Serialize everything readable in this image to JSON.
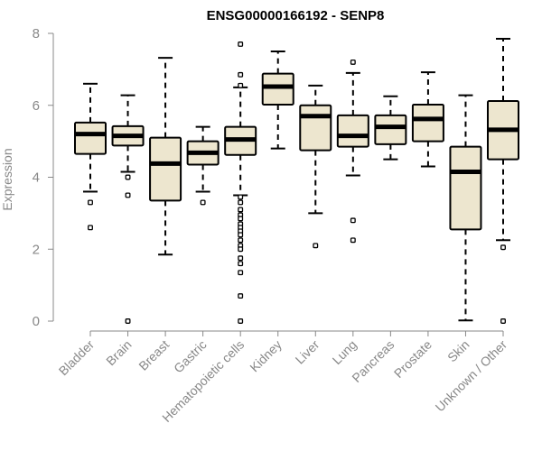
{
  "chart_data": {
    "type": "boxplot",
    "title": "ENSG00000166192 - SENP8",
    "xlabel": "",
    "ylabel": "Expression",
    "ylim": [
      0,
      8
    ],
    "yticks": [
      0,
      2,
      4,
      6,
      8
    ],
    "box_color": "#ede6cf",
    "categories": [
      "Bladder",
      "Brain",
      "Breast",
      "Gastric",
      "Hematopoietic cells",
      "Kidney",
      "Liver",
      "Lung",
      "Pancreas",
      "Prostate",
      "Skin",
      "Unknown / Other"
    ],
    "boxes": [
      {
        "name": "Bladder",
        "whisker_low": 3.6,
        "q1": 4.65,
        "median": 5.2,
        "q3": 5.52,
        "whisker_high": 6.6,
        "outliers": [
          3.3,
          2.6
        ]
      },
      {
        "name": "Brain",
        "whisker_low": 4.15,
        "q1": 4.88,
        "median": 5.15,
        "q3": 5.42,
        "whisker_high": 6.28,
        "outliers": [
          4.0,
          3.5,
          0.0
        ]
      },
      {
        "name": "Breast",
        "whisker_low": 1.85,
        "q1": 3.35,
        "median": 4.38,
        "q3": 5.1,
        "whisker_high": 7.32,
        "outliers": []
      },
      {
        "name": "Gastric",
        "whisker_low": 3.6,
        "q1": 4.35,
        "median": 4.68,
        "q3": 5.0,
        "whisker_high": 5.4,
        "outliers": [
          3.3
        ]
      },
      {
        "name": "Hematopoietic cells",
        "whisker_low": 3.5,
        "q1": 4.62,
        "median": 5.05,
        "q3": 5.4,
        "whisker_high": 6.5,
        "outliers": [
          7.7,
          6.85,
          6.55,
          3.45,
          3.3,
          3.1,
          2.95,
          2.85,
          2.7,
          2.6,
          2.5,
          2.4,
          2.25,
          2.1,
          2.0,
          1.75,
          1.6,
          1.35,
          0.7,
          0.0
        ]
      },
      {
        "name": "Kidney",
        "whisker_low": 4.8,
        "q1": 6.02,
        "median": 6.52,
        "q3": 6.88,
        "whisker_high": 7.5,
        "outliers": []
      },
      {
        "name": "Liver",
        "whisker_low": 3.0,
        "q1": 4.75,
        "median": 5.7,
        "q3": 6.0,
        "whisker_high": 6.55,
        "outliers": [
          2.1
        ]
      },
      {
        "name": "Lung",
        "whisker_low": 4.05,
        "q1": 4.85,
        "median": 5.15,
        "q3": 5.72,
        "whisker_high": 6.9,
        "outliers": [
          7.2,
          2.8,
          2.25
        ]
      },
      {
        "name": "Pancreas",
        "whisker_low": 4.5,
        "q1": 4.92,
        "median": 5.4,
        "q3": 5.72,
        "whisker_high": 6.25,
        "outliers": []
      },
      {
        "name": "Prostate",
        "whisker_low": 4.3,
        "q1": 5.0,
        "median": 5.62,
        "q3": 6.02,
        "whisker_high": 6.92,
        "outliers": []
      },
      {
        "name": "Skin",
        "whisker_low": 0.02,
        "q1": 2.55,
        "median": 4.15,
        "q3": 4.85,
        "whisker_high": 6.28,
        "outliers": []
      },
      {
        "name": "Unknown / Other",
        "whisker_low": 2.25,
        "q1": 4.5,
        "median": 5.32,
        "q3": 6.12,
        "whisker_high": 7.85,
        "outliers": [
          2.05,
          0.0
        ]
      }
    ]
  }
}
